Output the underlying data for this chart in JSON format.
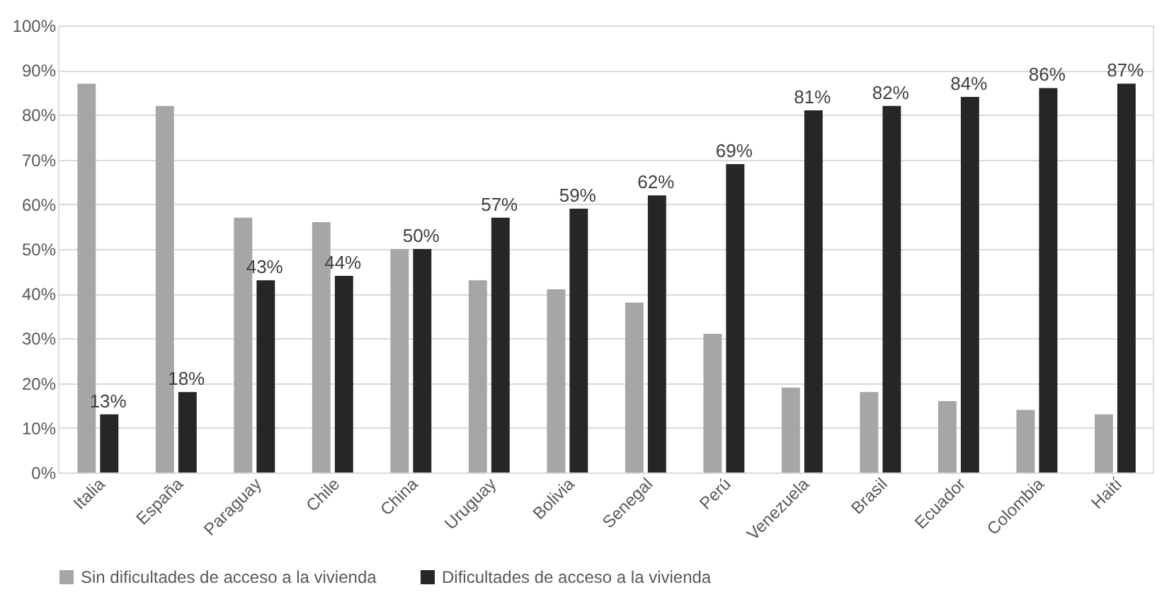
{
  "chart_data": {
    "type": "bar",
    "categories": [
      "Italia",
      "España",
      "Paraguay",
      "Chile",
      "China",
      "Uruguay",
      "Bolivia",
      "Senegal",
      "Perú",
      "Venezuela",
      "Brasil",
      "Ecuador",
      "Colombia",
      "Haití"
    ],
    "series": [
      {
        "name": "Sin dificultades de acceso a la vivienda",
        "color": "#a6a6a6",
        "values": [
          87,
          82,
          57,
          56,
          50,
          43,
          41,
          38,
          31,
          19,
          18,
          16,
          14,
          13
        ]
      },
      {
        "name": "Dificultades de acceso a la vivienda",
        "color": "#262626",
        "values": [
          13,
          18,
          43,
          44,
          50,
          57,
          59,
          62,
          69,
          81,
          82,
          84,
          86,
          87
        ],
        "value_labels": [
          "13%",
          "18%",
          "43%",
          "44%",
          "50%",
          "57%",
          "59%",
          "62%",
          "69%",
          "81%",
          "82%",
          "84%",
          "86%",
          "87%"
        ]
      }
    ],
    "ylim": [
      0,
      100
    ],
    "yticks": [
      {
        "value": 0,
        "label": "0%"
      },
      {
        "value": 10,
        "label": "10%"
      },
      {
        "value": 20,
        "label": "20%"
      },
      {
        "value": 30,
        "label": "30%"
      },
      {
        "value": 40,
        "label": "40%"
      },
      {
        "value": 50,
        "label": "50%"
      },
      {
        "value": 60,
        "label": "60%"
      },
      {
        "value": 70,
        "label": "70%"
      },
      {
        "value": 80,
        "label": "80%"
      },
      {
        "value": 90,
        "label": "90%"
      },
      {
        "value": 100,
        "label": "100%"
      }
    ],
    "grid": "y",
    "legend": "bottom"
  }
}
